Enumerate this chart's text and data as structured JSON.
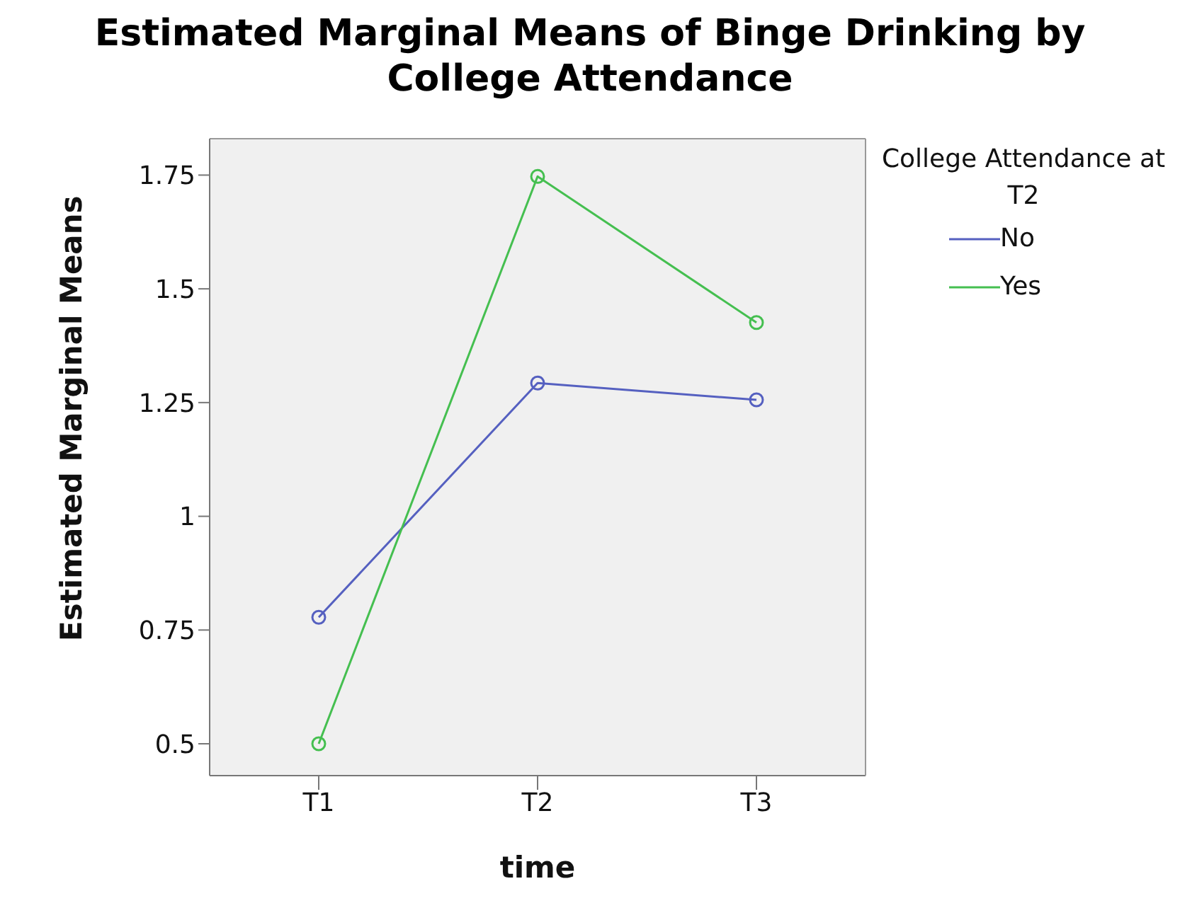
{
  "chart_data": {
    "type": "line",
    "title": "Estimated Marginal Means of Binge Drinking by College Attendance",
    "xlabel": "time",
    "ylabel": "Estimated Marginal Means",
    "legend_title": "College Attendance at T2",
    "categories": [
      "T1",
      "T2",
      "T3"
    ],
    "series": [
      {
        "name": "No",
        "color": "#5560c0",
        "values": [
          0.778,
          1.293,
          1.256
        ]
      },
      {
        "name": "Yes",
        "color": "#45bf50",
        "values": [
          0.5,
          1.747,
          1.426
        ]
      }
    ],
    "ylim": [
      0.43,
      1.83
    ],
    "yticks": [
      0.5,
      0.75,
      1,
      1.25,
      1.5,
      1.75
    ],
    "legend": "top right",
    "marker": "circle",
    "line_style": "solid"
  }
}
